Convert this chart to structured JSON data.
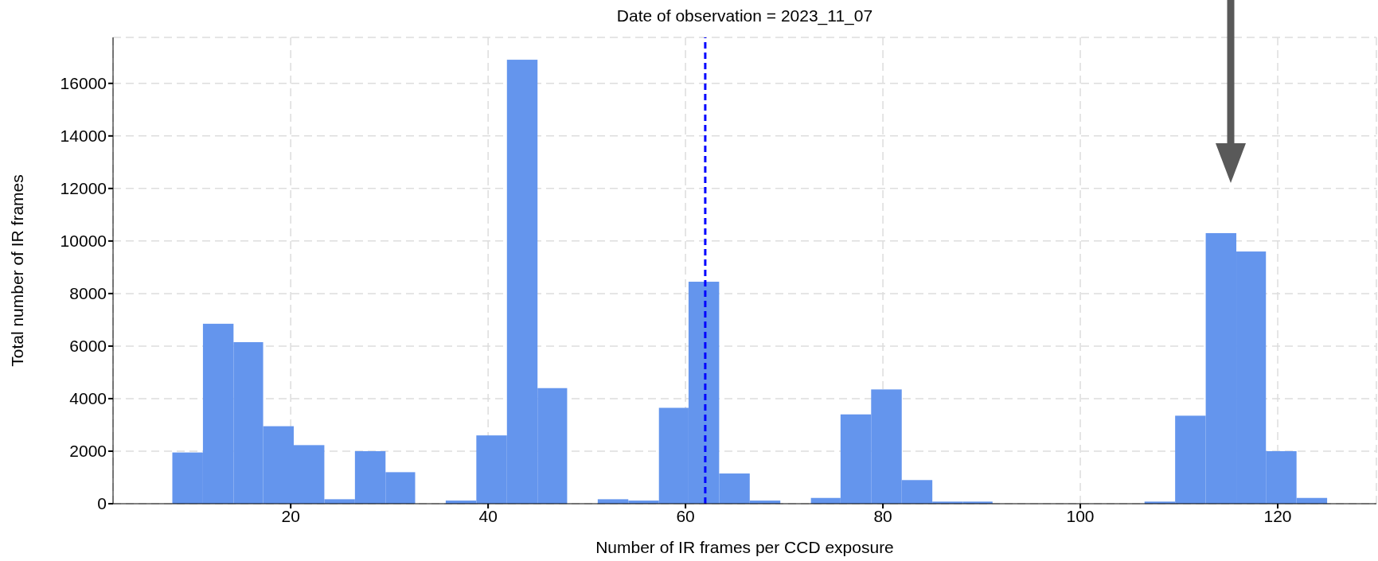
{
  "chart_data": {
    "type": "histogram",
    "title": "Date of observation = 2023_11_07",
    "xlabel": "Number of IR frames per CCD exposure",
    "ylabel": "Total number of IR frames",
    "bins": [
      8,
      11.1,
      14.2,
      17.2,
      20.3,
      23.4,
      26.5,
      29.6,
      32.6,
      35.7,
      38.8,
      41.9,
      45.0,
      48.0,
      51.1,
      54.2,
      57.3,
      60.3,
      63.4,
      66.5,
      69.6,
      72.7,
      75.7,
      78.8,
      81.9,
      85.0,
      88.1,
      91.1,
      106.5,
      109.6,
      112.7,
      115.8,
      118.8,
      121.9,
      125
    ],
    "values": [
      1950,
      6850,
      6150,
      2950,
      2230,
      170,
      2000,
      1200,
      null,
      120,
      2600,
      16900,
      4400,
      null,
      170,
      120,
      3650,
      8450,
      1150,
      120,
      0,
      220,
      3400,
      4350,
      900,
      80,
      80,
      0,
      80,
      3350,
      10300,
      9600,
      2000,
      220
    ],
    "color": "#6495ed",
    "xlim": [
      2,
      130
    ],
    "xticks": [
      20,
      40,
      60,
      80,
      100,
      120
    ],
    "ylim": [
      0,
      17750
    ],
    "yticks": [
      0,
      2000,
      4000,
      6000,
      8000,
      10000,
      12000,
      14000,
      16000
    ],
    "grid": true,
    "ref_lines": [
      {
        "axis": "x",
        "value": 62,
        "color": "#0000ff",
        "line_style": "dashed"
      }
    ]
  }
}
